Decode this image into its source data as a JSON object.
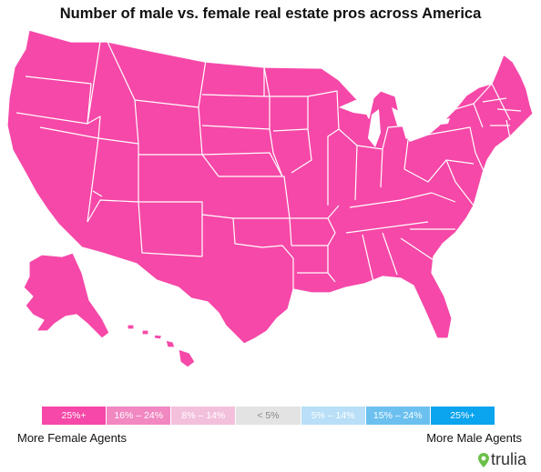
{
  "title": "Number of male vs. female real estate pros across America",
  "map": {
    "fill_color": "#f648a8",
    "border_color": "#ffffff",
    "all_states_category": "25%+ (More Female Agents)"
  },
  "legend": {
    "items": [
      {
        "label": "25%+",
        "bg": "#f648a8",
        "fg": "#ffffff"
      },
      {
        "label": "16% – 24%",
        "bg": "#f188c2",
        "fg": "#ffffff"
      },
      {
        "label": "8% – 14%",
        "bg": "#f3c0dc",
        "fg": "#ffffff"
      },
      {
        "label": "< 5%",
        "bg": "#e3e3e3",
        "fg": "#888888"
      },
      {
        "label": "5% – 14%",
        "bg": "#b8dff7",
        "fg": "#ffffff"
      },
      {
        "label": "15% – 24%",
        "bg": "#6cc0ef",
        "fg": "#ffffff"
      },
      {
        "label": "25%+",
        "bg": "#0ba4ee",
        "fg": "#ffffff"
      }
    ],
    "left_caption": "More Female Agents",
    "right_caption": "More Male Agents"
  },
  "brand": {
    "name": "trulia",
    "icon": "map-pin-icon",
    "color": "#6cc04a"
  }
}
